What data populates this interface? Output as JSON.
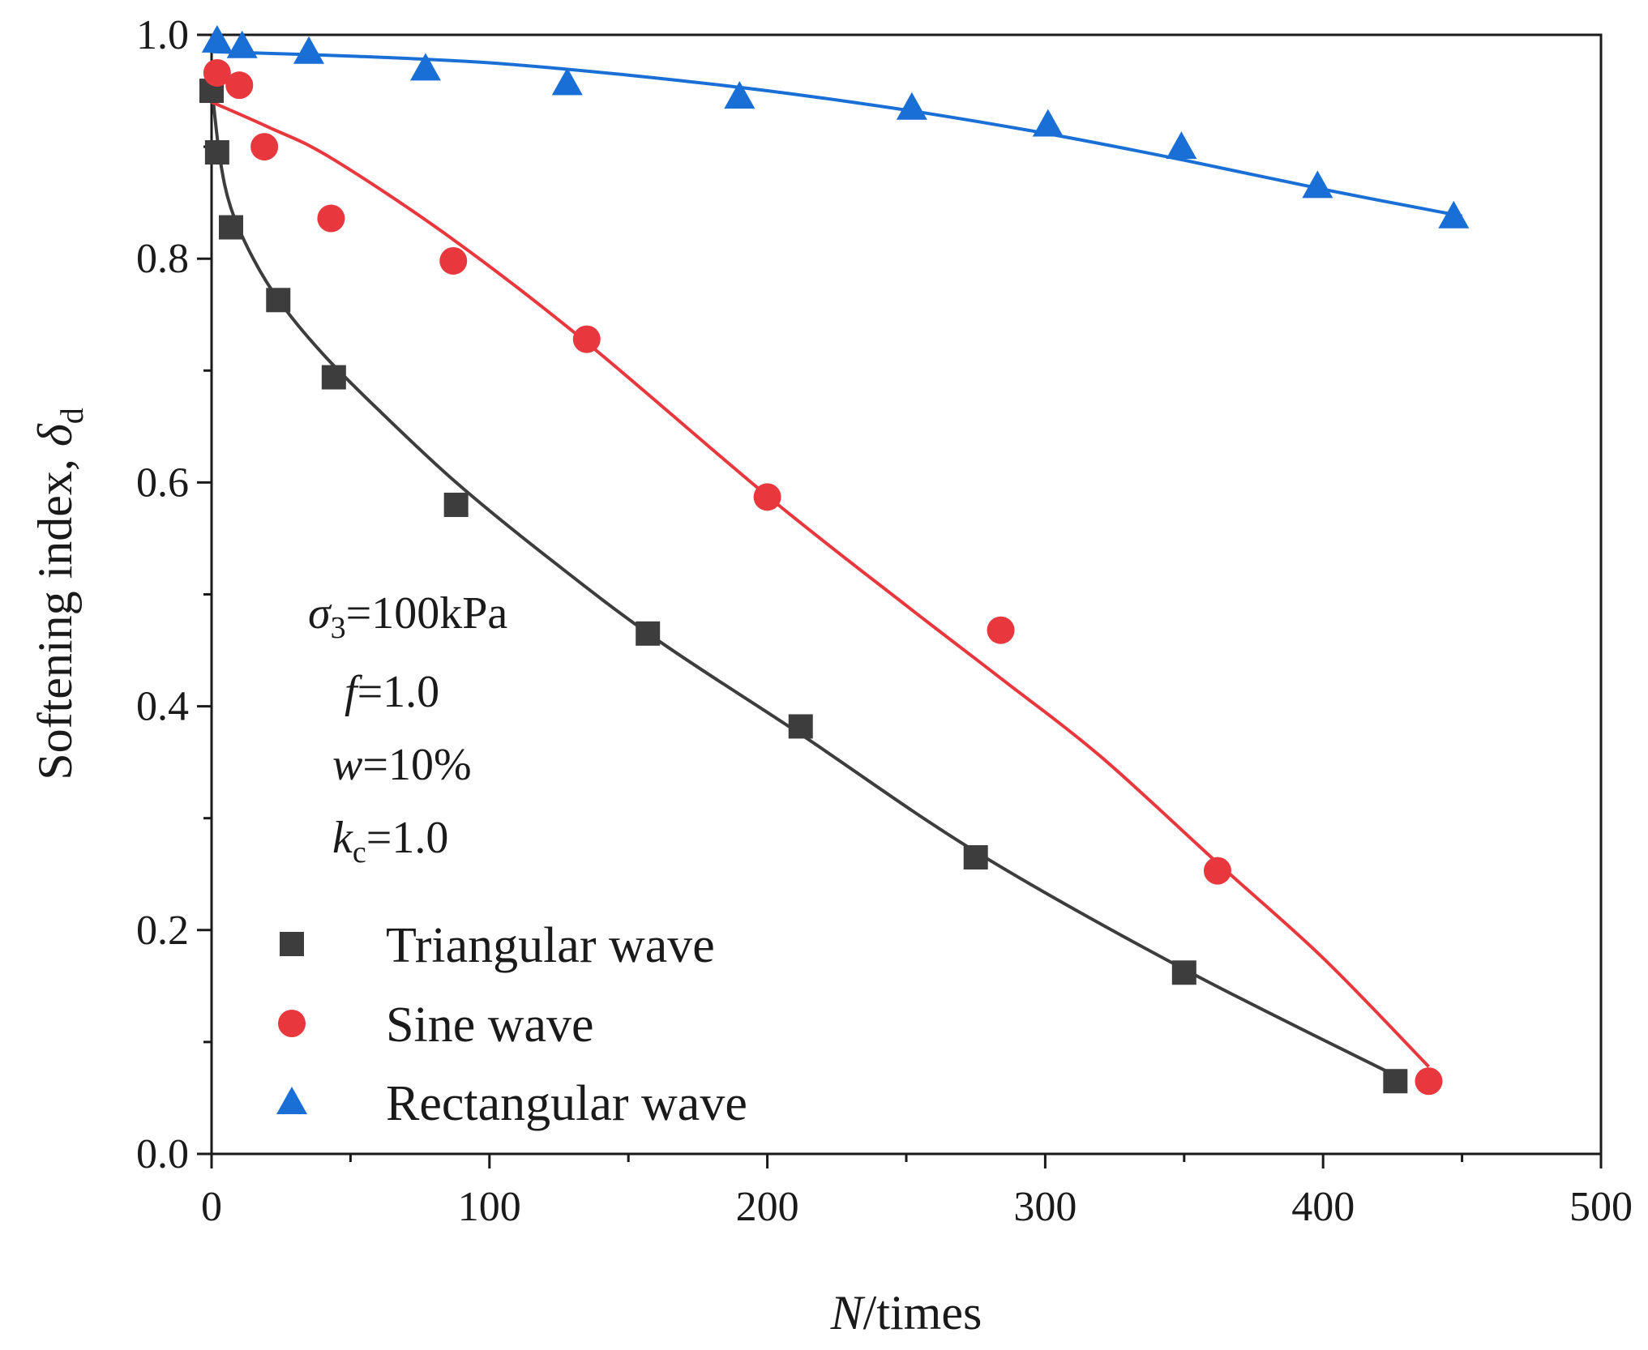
{
  "chart_data": {
    "type": "scatter",
    "xlabel": {
      "italic": "N",
      "rest": "/times"
    },
    "ylabel": {
      "text": "Softening index, ",
      "symbol": "δ",
      "sub": "d"
    },
    "xlim": [
      0,
      500
    ],
    "ylim": [
      0,
      1.0
    ],
    "xticks": [
      0,
      100,
      200,
      300,
      400,
      500
    ],
    "xtick_labels": [
      "0",
      "100",
      "200",
      "300",
      "400",
      "500"
    ],
    "yticks": [
      0.0,
      0.2,
      0.4,
      0.6,
      0.8,
      1.0
    ],
    "ytick_labels": [
      "0.0",
      "0.2",
      "0.4",
      "0.6",
      "0.8",
      "1.0"
    ],
    "grid": false,
    "legend_position": "bottom-left",
    "parameters": [
      {
        "italic": "σ",
        "sub": "3",
        "rest": "=100kPa"
      },
      {
        "italic": "f",
        "sub": "",
        "rest": "=1.0"
      },
      {
        "italic": "w",
        "sub": "",
        "rest": "=10%"
      },
      {
        "italic": "k",
        "sub": "c",
        "rest": "=1.0"
      }
    ],
    "series": [
      {
        "name": "Triangular wave",
        "marker": "square",
        "color": "#3d3d3d",
        "points": [
          [
            0,
            0.95
          ],
          [
            2,
            0.895
          ],
          [
            7,
            0.828
          ],
          [
            24,
            0.763
          ],
          [
            44,
            0.694
          ],
          [
            88,
            0.58
          ],
          [
            157,
            0.465
          ],
          [
            212,
            0.382
          ],
          [
            275,
            0.265
          ],
          [
            350,
            0.162
          ],
          [
            426,
            0.065
          ]
        ],
        "fit": [
          [
            0,
            0.955
          ],
          [
            3,
            0.89
          ],
          [
            7,
            0.845
          ],
          [
            15,
            0.8
          ],
          [
            25,
            0.76
          ],
          [
            40,
            0.715
          ],
          [
            60,
            0.665
          ],
          [
            88,
            0.6
          ],
          [
            120,
            0.535
          ],
          [
            160,
            0.46
          ],
          [
            212,
            0.375
          ],
          [
            275,
            0.27
          ],
          [
            350,
            0.165
          ],
          [
            426,
            0.07
          ]
        ]
      },
      {
        "name": "Sine wave",
        "marker": "circle",
        "color": "#e8383d",
        "points": [
          [
            2,
            0.966
          ],
          [
            10,
            0.955
          ],
          [
            19,
            0.9
          ],
          [
            43,
            0.836
          ],
          [
            87,
            0.798
          ],
          [
            135,
            0.728
          ],
          [
            200,
            0.587
          ],
          [
            284,
            0.468
          ],
          [
            362,
            0.253
          ],
          [
            438,
            0.065
          ]
        ],
        "fit": [
          [
            0,
            0.94
          ],
          [
            20,
            0.918
          ],
          [
            43,
            0.89
          ],
          [
            87,
            0.817
          ],
          [
            135,
            0.725
          ],
          [
            200,
            0.588
          ],
          [
            250,
            0.49
          ],
          [
            284,
            0.425
          ],
          [
            320,
            0.355
          ],
          [
            362,
            0.26
          ],
          [
            400,
            0.175
          ],
          [
            438,
            0.078
          ]
        ]
      },
      {
        "name": "Rectangular wave",
        "marker": "triangle",
        "color": "#1a6fd6",
        "points": [
          [
            2,
            0.995
          ],
          [
            11,
            0.99
          ],
          [
            35,
            0.985
          ],
          [
            77,
            0.97
          ],
          [
            128,
            0.957
          ],
          [
            190,
            0.945
          ],
          [
            252,
            0.935
          ],
          [
            301,
            0.92
          ],
          [
            349,
            0.9
          ],
          [
            398,
            0.865
          ],
          [
            447,
            0.838
          ]
        ],
        "fit": [
          [
            0,
            0.985
          ],
          [
            50,
            0.981
          ],
          [
            100,
            0.975
          ],
          [
            150,
            0.964
          ],
          [
            200,
            0.95
          ],
          [
            252,
            0.932
          ],
          [
            300,
            0.912
          ],
          [
            350,
            0.888
          ],
          [
            400,
            0.862
          ],
          [
            450,
            0.838
          ]
        ]
      }
    ]
  }
}
